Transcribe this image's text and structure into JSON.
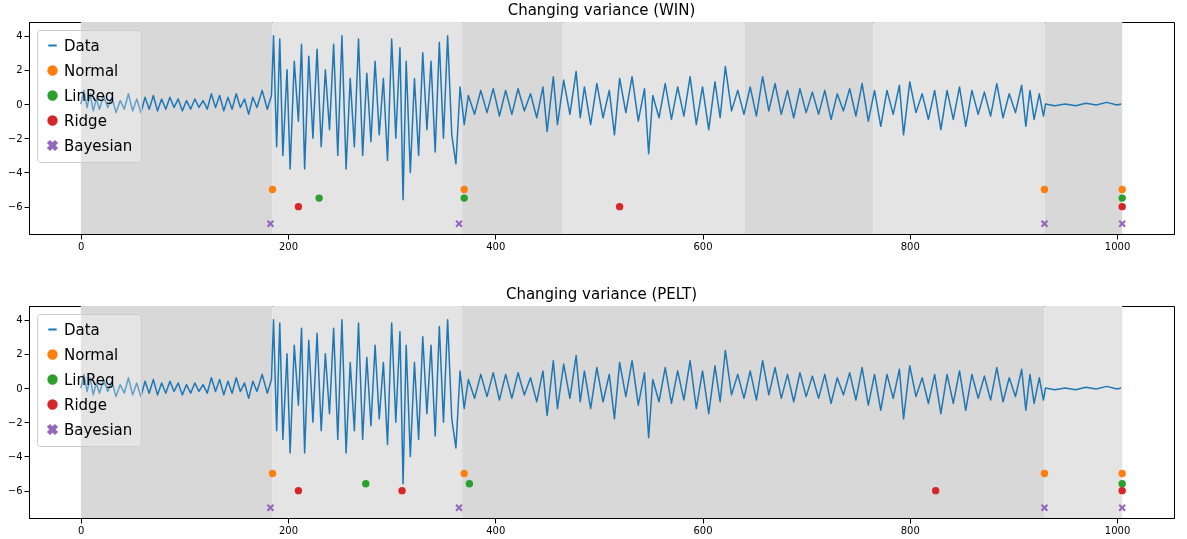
{
  "chart_data": [
    {
      "type": "line",
      "title": "Changing variance (WIN)",
      "xlim": [
        -50,
        1055
      ],
      "ylim": [
        -7.6,
        4.8
      ],
      "xticks": [
        0,
        200,
        400,
        600,
        800,
        1000
      ],
      "yticks": [
        -6,
        -4,
        -2,
        0,
        2,
        4
      ],
      "grid": false,
      "legend": "top left",
      "bands": [
        {
          "axis": "x",
          "from": 0,
          "to": 185,
          "color": "#d8d8d8"
        },
        {
          "axis": "x",
          "from": 185,
          "to": 368,
          "color": "#e4e4e4"
        },
        {
          "axis": "x",
          "from": 368,
          "to": 465,
          "color": "#d8d8d8"
        },
        {
          "axis": "x",
          "from": 465,
          "to": 641,
          "color": "#e4e4e4"
        },
        {
          "axis": "x",
          "from": 641,
          "to": 765,
          "color": "#d8d8d8"
        },
        {
          "axis": "x",
          "from": 765,
          "to": 930,
          "color": "#e4e4e4"
        },
        {
          "axis": "x",
          "from": 930,
          "to": 1005,
          "color": "#d8d8d8"
        }
      ],
      "series": [
        {
          "name": "Data",
          "type": "line",
          "color": "#1f77b4",
          "x": [
            0,
            3,
            6,
            9,
            12,
            15,
            18,
            22,
            26,
            30,
            34,
            38,
            42,
            46,
            50,
            54,
            58,
            62,
            66,
            70,
            74,
            78,
            82,
            86,
            90,
            94,
            98,
            102,
            106,
            110,
            114,
            118,
            122,
            126,
            130,
            134,
            138,
            142,
            146,
            150,
            154,
            158,
            162,
            166,
            170,
            175,
            180,
            184,
            186,
            189,
            192,
            195,
            199,
            202,
            206,
            210,
            213,
            216,
            220,
            224,
            228,
            232,
            236,
            240,
            244,
            248,
            252,
            256,
            260,
            264,
            268,
            272,
            276,
            280,
            284,
            288,
            292,
            296,
            300,
            304,
            308,
            311,
            314,
            318,
            322,
            326,
            330,
            334,
            338,
            342,
            346,
            350,
            354,
            358,
            362,
            366,
            370,
            374,
            380,
            386,
            392,
            398,
            404,
            410,
            416,
            422,
            428,
            434,
            440,
            446,
            450,
            456,
            460,
            466,
            472,
            478,
            482,
            486,
            492,
            498,
            504,
            510,
            515,
            520,
            526,
            532,
            538,
            544,
            548,
            552,
            558,
            564,
            570,
            576,
            582,
            588,
            594,
            600,
            606,
            612,
            617,
            622,
            628,
            634,
            640,
            646,
            652,
            658,
            664,
            670,
            676,
            682,
            688,
            694,
            700,
            706,
            712,
            718,
            724,
            730,
            736,
            742,
            748,
            754,
            760,
            766,
            772,
            778,
            784,
            790,
            794,
            800,
            806,
            812,
            818,
            824,
            830,
            836,
            842,
            848,
            854,
            860,
            866,
            872,
            878,
            884,
            890,
            896,
            902,
            908,
            912,
            916,
            920,
            925,
            929,
            931,
            940,
            950,
            960,
            970,
            980,
            990,
            1000,
            1004
          ],
          "values": [
            0,
            0.8,
            -0.2,
            0.6,
            -0.4,
            0.3,
            -0.3,
            0.5,
            -0.2,
            0.4,
            -0.5,
            0.2,
            -0.3,
            0.6,
            -0.4,
            0.3,
            -0.5,
            0.4,
            -0.3,
            0.5,
            -0.4,
            0.3,
            -0.3,
            0.4,
            -0.2,
            0.3,
            -0.4,
            0.2,
            -0.3,
            0.3,
            -0.2,
            0.2,
            -0.3,
            0.6,
            -0.2,
            0.5,
            -0.4,
            0.4,
            -0.3,
            0.6,
            -0.2,
            0.3,
            -0.6,
            0.4,
            -0.2,
            0.8,
            -0.3,
            0.5,
            4.0,
            -2.5,
            3.8,
            -3.0,
            2.0,
            -3.8,
            2.5,
            -1.0,
            3.5,
            -3.8,
            2.8,
            -2.0,
            3.2,
            -2.5,
            2.0,
            -1.5,
            3.5,
            -3.0,
            4.0,
            -3.8,
            1.5,
            -2.5,
            3.8,
            -3.0,
            1.8,
            -2.2,
            2.5,
            -1.8,
            1.5,
            -3.3,
            3.8,
            -2.0,
            3.3,
            -5.6,
            2.5,
            -4.0,
            1.5,
            -3.0,
            3.0,
            -1.5,
            2.5,
            -2.8,
            3.6,
            -2.0,
            4.0,
            -1.8,
            -3.5,
            1.0,
            -1.2,
            0.5,
            -0.6,
            0.8,
            -0.5,
            0.9,
            -0.7,
            0.8,
            -0.6,
            0.9,
            -0.4,
            0.6,
            -0.8,
            1.0,
            -1.6,
            1.6,
            -1.2,
            1.4,
            -0.6,
            1.9,
            -0.8,
            1.0,
            -1.2,
            1.2,
            -0.8,
            0.8,
            -1.8,
            1.5,
            -0.5,
            1.6,
            -1.0,
            0.9,
            -2.9,
            0.5,
            -0.8,
            1.2,
            -0.9,
            1.0,
            -0.7,
            1.6,
            -1.2,
            1.0,
            -1.5,
            1.3,
            -0.8,
            2.2,
            -0.4,
            0.8,
            -0.6,
            1.0,
            -0.7,
            1.6,
            -0.4,
            1.2,
            -0.6,
            0.8,
            -0.8,
            0.9,
            -0.5,
            0.7,
            -0.6,
            0.8,
            -0.9,
            0.6,
            -0.4,
            0.9,
            -0.7,
            1.2,
            -1.0,
            0.8,
            -1.3,
            0.8,
            -0.6,
            1.1,
            -1.8,
            1.3,
            -0.5,
            0.6,
            -0.9,
            0.8,
            -1.5,
            0.8,
            -0.9,
            1.0,
            -1.3,
            0.8,
            -0.6,
            0.7,
            -0.7,
            1.2,
            -0.8,
            0.6,
            -0.5,
            1.1,
            -1.3,
            0.8,
            -0.9,
            0.6,
            -0.7,
            0.0,
            -0.1,
            0.0,
            -0.1,
            0.05,
            -0.05,
            0.1,
            -0.05,
            0.0
          ]
        },
        {
          "name": "Normal",
          "type": "scatter",
          "marker": "circle",
          "color": "#ff7f0e",
          "x": [
            185,
            370,
            930,
            1005
          ],
          "values": [
            -5,
            -5,
            -5,
            -5
          ]
        },
        {
          "name": "LinReg",
          "type": "scatter",
          "marker": "circle",
          "color": "#2ca02c",
          "x": [
            230,
            370,
            1005
          ],
          "values": [
            -5.5,
            -5.5,
            -5.5
          ]
        },
        {
          "name": "Ridge",
          "type": "scatter",
          "marker": "circle",
          "color": "#d62728",
          "x": [
            210,
            520,
            1005
          ],
          "values": [
            -6,
            -6,
            -6
          ]
        },
        {
          "name": "Bayesian",
          "type": "scatter",
          "marker": "cross",
          "color": "#9467bd",
          "x": [
            183,
            365,
            930,
            1005
          ],
          "values": [
            -7,
            -7,
            -7,
            -7
          ]
        }
      ]
    },
    {
      "type": "line",
      "title": "Changing variance (PELT)",
      "xlim": [
        -50,
        1055
      ],
      "ylim": [
        -7.6,
        4.8
      ],
      "xticks": [
        0,
        200,
        400,
        600,
        800,
        1000
      ],
      "yticks": [
        -6,
        -4,
        -2,
        0,
        2,
        4
      ],
      "grid": false,
      "legend": "top left",
      "bands": [
        {
          "axis": "x",
          "from": 0,
          "to": 185,
          "color": "#d8d8d8"
        },
        {
          "axis": "x",
          "from": 185,
          "to": 368,
          "color": "#e4e4e4"
        },
        {
          "axis": "x",
          "from": 368,
          "to": 930,
          "color": "#d8d8d8"
        },
        {
          "axis": "x",
          "from": 930,
          "to": 1005,
          "color": "#e4e4e4"
        }
      ],
      "series": [
        {
          "name": "Data",
          "type": "line",
          "color": "#1f77b4",
          "x": [
            0,
            3,
            6,
            9,
            12,
            15,
            18,
            22,
            26,
            30,
            34,
            38,
            42,
            46,
            50,
            54,
            58,
            62,
            66,
            70,
            74,
            78,
            82,
            86,
            90,
            94,
            98,
            102,
            106,
            110,
            114,
            118,
            122,
            126,
            130,
            134,
            138,
            142,
            146,
            150,
            154,
            158,
            162,
            166,
            170,
            175,
            180,
            184,
            186,
            189,
            192,
            195,
            199,
            202,
            206,
            210,
            213,
            216,
            220,
            224,
            228,
            232,
            236,
            240,
            244,
            248,
            252,
            256,
            260,
            264,
            268,
            272,
            276,
            280,
            284,
            288,
            292,
            296,
            300,
            304,
            308,
            311,
            314,
            318,
            322,
            326,
            330,
            334,
            338,
            342,
            346,
            350,
            354,
            358,
            362,
            366,
            370,
            374,
            380,
            386,
            392,
            398,
            404,
            410,
            416,
            422,
            428,
            434,
            440,
            446,
            450,
            456,
            460,
            466,
            472,
            478,
            482,
            486,
            492,
            498,
            504,
            510,
            515,
            520,
            526,
            532,
            538,
            544,
            548,
            552,
            558,
            564,
            570,
            576,
            582,
            588,
            594,
            600,
            606,
            612,
            617,
            622,
            628,
            634,
            640,
            646,
            652,
            658,
            664,
            670,
            676,
            682,
            688,
            694,
            700,
            706,
            712,
            718,
            724,
            730,
            736,
            742,
            748,
            754,
            760,
            766,
            772,
            778,
            784,
            790,
            794,
            800,
            806,
            812,
            818,
            824,
            830,
            836,
            842,
            848,
            854,
            860,
            866,
            872,
            878,
            884,
            890,
            896,
            902,
            908,
            912,
            916,
            920,
            925,
            929,
            931,
            940,
            950,
            960,
            970,
            980,
            990,
            1000,
            1004
          ],
          "values": [
            0,
            0.8,
            -0.2,
            0.6,
            -0.4,
            0.3,
            -0.3,
            0.5,
            -0.2,
            0.4,
            -0.5,
            0.2,
            -0.3,
            0.6,
            -0.4,
            0.3,
            -0.5,
            0.4,
            -0.3,
            0.5,
            -0.4,
            0.3,
            -0.3,
            0.4,
            -0.2,
            0.3,
            -0.4,
            0.2,
            -0.3,
            0.3,
            -0.2,
            0.2,
            -0.3,
            0.6,
            -0.2,
            0.5,
            -0.4,
            0.4,
            -0.3,
            0.6,
            -0.2,
            0.3,
            -0.6,
            0.4,
            -0.2,
            0.8,
            -0.3,
            0.5,
            4.0,
            -2.5,
            3.8,
            -3.0,
            2.0,
            -3.8,
            2.5,
            -1.0,
            3.5,
            -3.8,
            2.8,
            -2.0,
            3.2,
            -2.5,
            2.0,
            -1.5,
            3.5,
            -3.0,
            4.0,
            -3.8,
            1.5,
            -2.5,
            3.8,
            -3.0,
            1.8,
            -2.2,
            2.5,
            -1.8,
            1.5,
            -3.3,
            3.8,
            -2.0,
            3.3,
            -5.6,
            2.5,
            -4.0,
            1.5,
            -3.0,
            3.0,
            -1.5,
            2.5,
            -2.8,
            3.6,
            -2.0,
            4.0,
            -1.8,
            -3.5,
            1.0,
            -1.2,
            0.5,
            -0.6,
            0.8,
            -0.5,
            0.9,
            -0.7,
            0.8,
            -0.6,
            0.9,
            -0.4,
            0.6,
            -0.8,
            1.0,
            -1.6,
            1.6,
            -1.2,
            1.4,
            -0.6,
            1.9,
            -0.8,
            1.0,
            -1.2,
            1.2,
            -0.8,
            0.8,
            -1.8,
            1.5,
            -0.5,
            1.6,
            -1.0,
            0.9,
            -2.9,
            0.5,
            -0.8,
            1.2,
            -0.9,
            1.0,
            -0.7,
            1.6,
            -1.2,
            1.0,
            -1.5,
            1.3,
            -0.8,
            2.2,
            -0.4,
            0.8,
            -0.6,
            1.0,
            -0.7,
            1.6,
            -0.4,
            1.2,
            -0.6,
            0.8,
            -0.8,
            0.9,
            -0.5,
            0.7,
            -0.6,
            0.8,
            -0.9,
            0.6,
            -0.4,
            0.9,
            -0.7,
            1.2,
            -1.0,
            0.8,
            -1.3,
            0.8,
            -0.6,
            1.1,
            -1.8,
            1.3,
            -0.5,
            0.6,
            -0.9,
            0.8,
            -1.5,
            0.8,
            -0.9,
            1.0,
            -1.3,
            0.8,
            -0.6,
            0.7,
            -0.7,
            1.2,
            -0.8,
            0.6,
            -0.5,
            1.1,
            -1.3,
            0.8,
            -0.9,
            0.6,
            -0.7,
            0.0,
            -0.1,
            0.0,
            -0.1,
            0.05,
            -0.05,
            0.1,
            -0.05,
            0.0
          ]
        },
        {
          "name": "Normal",
          "type": "scatter",
          "marker": "circle",
          "color": "#ff7f0e",
          "x": [
            185,
            370,
            930,
            1005
          ],
          "values": [
            -5,
            -5,
            -5,
            -5
          ]
        },
        {
          "name": "LinReg",
          "type": "scatter",
          "marker": "circle",
          "color": "#2ca02c",
          "x": [
            275,
            375,
            1005
          ],
          "values": [
            -5.6,
            -5.6,
            -5.6
          ]
        },
        {
          "name": "Ridge",
          "type": "scatter",
          "marker": "circle",
          "color": "#d62728",
          "x": [
            210,
            310,
            825,
            1005
          ],
          "values": [
            -6,
            -6,
            -6,
            -6
          ]
        },
        {
          "name": "Bayesian",
          "type": "scatter",
          "marker": "cross",
          "color": "#9467bd",
          "x": [
            183,
            365,
            930,
            1005
          ],
          "values": [
            -7,
            -7,
            -7,
            -7
          ]
        }
      ]
    }
  ]
}
